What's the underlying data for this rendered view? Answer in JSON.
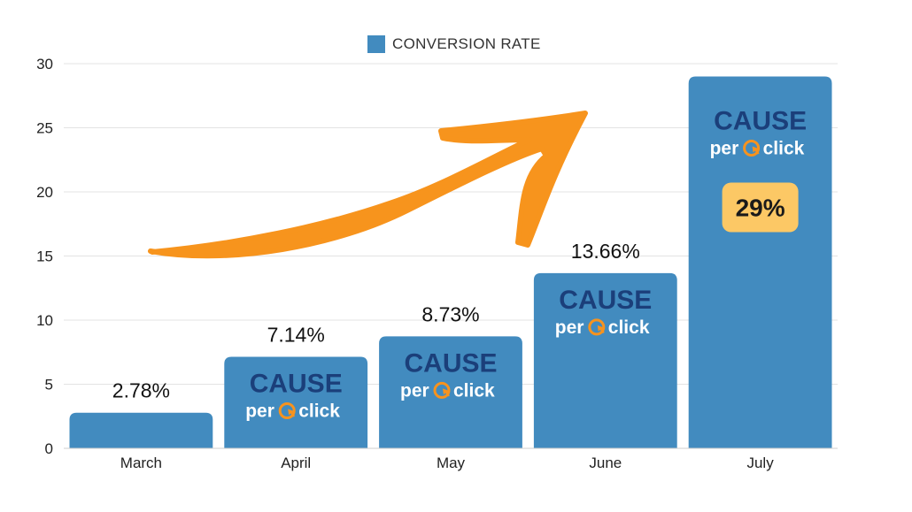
{
  "chart_data": {
    "type": "bar",
    "categories": [
      "March",
      "April",
      "May",
      "June",
      "July"
    ],
    "series": [
      {
        "name": "CONVERSION RATE",
        "values": [
          2.78,
          7.14,
          8.73,
          13.66,
          29
        ]
      }
    ],
    "data_labels": [
      "2.78%",
      "7.14%",
      "8.73%",
      "13.66%",
      "29%"
    ],
    "yticks": [
      0,
      5,
      10,
      15,
      20,
      25,
      30
    ],
    "ylim": [
      0,
      30
    ],
    "grid": true,
    "legend_position": "top-center",
    "highlight_label": "29%"
  },
  "logo": {
    "line1": "CAUSE",
    "line2a": "per",
    "line2b": "click"
  },
  "colors": {
    "bar": "#428bbf",
    "logo_blue": "#1b3f7a",
    "logo_orange": "#f7931e",
    "arrow": "#f7941d",
    "badge": "#fcc865",
    "grid": "#e3e3e3"
  }
}
